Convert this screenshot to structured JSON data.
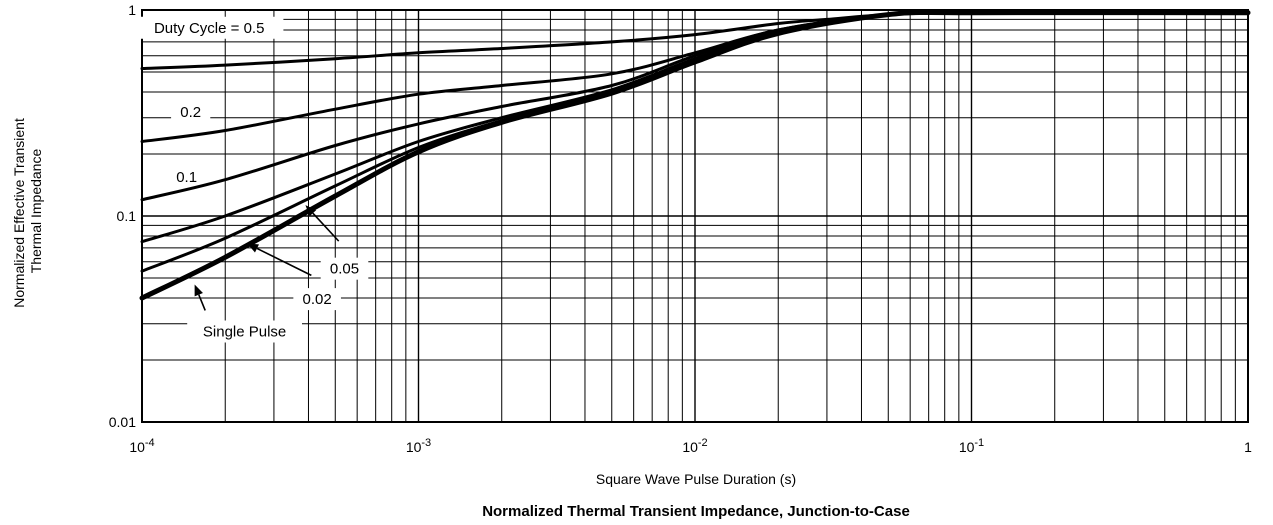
{
  "chart_data": {
    "type": "line",
    "title": "",
    "caption": "Normalized Thermal Transient Impedance, Junction-to-Case",
    "xlabel": "Square Wave Pulse Duration (s)",
    "ylabel": [
      "Normalized Effective Transient",
      "Thermal Impedance"
    ],
    "xscale": "log",
    "yscale": "log",
    "xlim": [
      0.0001,
      1
    ],
    "ylim": [
      0.01,
      1
    ],
    "grid": true,
    "x_ticks": [
      {
        "value": 0.0001,
        "base": "10",
        "exp": "-4"
      },
      {
        "value": 0.001,
        "base": "10",
        "exp": "-3"
      },
      {
        "value": 0.01,
        "base": "10",
        "exp": "-2"
      },
      {
        "value": 0.1,
        "base": "10",
        "exp": "-1"
      },
      {
        "value": 1,
        "base": "1",
        "exp": ""
      }
    ],
    "y_ticks": [
      {
        "value": 1,
        "label": "1"
      },
      {
        "value": 0.1,
        "label": "0.1"
      },
      {
        "value": 0.01,
        "label": "0.01"
      }
    ],
    "series": [
      {
        "name": "Duty Cycle = 0.5",
        "width": 3,
        "x": [
          0.0001,
          0.0002,
          0.0005,
          0.001,
          0.002,
          0.005,
          0.01,
          0.02,
          0.03,
          0.05,
          0.1,
          1
        ],
        "y": [
          0.52,
          0.54,
          0.58,
          0.62,
          0.65,
          0.7,
          0.76,
          0.86,
          0.9,
          0.95,
          0.97,
          0.97
        ]
      },
      {
        "name": "0.2",
        "width": 3,
        "x": [
          0.0001,
          0.0002,
          0.0005,
          0.001,
          0.002,
          0.005,
          0.01,
          0.02,
          0.05,
          0.1,
          1
        ],
        "y": [
          0.23,
          0.26,
          0.33,
          0.39,
          0.43,
          0.49,
          0.62,
          0.8,
          0.95,
          0.97,
          0.97
        ]
      },
      {
        "name": "0.1",
        "width": 3,
        "x": [
          0.0001,
          0.0002,
          0.0005,
          0.001,
          0.002,
          0.005,
          0.01,
          0.02,
          0.05,
          0.1,
          1
        ],
        "y": [
          0.12,
          0.15,
          0.22,
          0.28,
          0.34,
          0.43,
          0.6,
          0.8,
          0.95,
          0.97,
          0.97
        ]
      },
      {
        "name": "0.05",
        "width": 3,
        "x": [
          0.0001,
          0.0002,
          0.0005,
          0.001,
          0.002,
          0.005,
          0.01,
          0.02,
          0.05,
          0.1,
          1
        ],
        "y": [
          0.075,
          0.1,
          0.16,
          0.23,
          0.3,
          0.41,
          0.58,
          0.79,
          0.95,
          0.97,
          0.97
        ]
      },
      {
        "name": "0.02",
        "width": 3,
        "x": [
          0.0001,
          0.0002,
          0.0005,
          0.001,
          0.002,
          0.005,
          0.01,
          0.02,
          0.05,
          0.1,
          1
        ],
        "y": [
          0.054,
          0.078,
          0.14,
          0.215,
          0.29,
          0.4,
          0.57,
          0.78,
          0.95,
          0.97,
          0.97
        ]
      },
      {
        "name": "Single Pulse",
        "width": 5,
        "x": [
          0.0001,
          0.0002,
          0.0005,
          0.001,
          0.002,
          0.005,
          0.01,
          0.02,
          0.05,
          0.1,
          1
        ],
        "y": [
          0.04,
          0.063,
          0.125,
          0.205,
          0.285,
          0.395,
          0.56,
          0.77,
          0.95,
          0.97,
          0.97
        ]
      }
    ],
    "annotations": [
      {
        "text": "Duty Cycle = 0.5",
        "x": 0.000175,
        "y": 0.82,
        "boxed": true
      },
      {
        "text": "0.2",
        "x": 0.00015,
        "y": 0.32,
        "boxed": true
      },
      {
        "text": "0.1",
        "x": 0.000145,
        "y": 0.155,
        "boxed": false
      },
      {
        "text": "0.05",
        "x": 0.00054,
        "y": 0.0555,
        "boxed": true,
        "arrow_from_y": 0.0755,
        "arrow_to": [
          0.00039,
          0.113
        ]
      },
      {
        "text": "0.02",
        "x": 0.00043,
        "y": 0.0395,
        "boxed": true,
        "arrow_from_y": 0.0515,
        "arrow_to": [
          0.00024,
          0.0735
        ]
      },
      {
        "text": "Single Pulse",
        "x": 0.000235,
        "y": 0.0275,
        "boxed": true,
        "arrow_from_y": 0.0348,
        "arrow_to": [
          0.000155,
          0.0465
        ]
      }
    ]
  }
}
